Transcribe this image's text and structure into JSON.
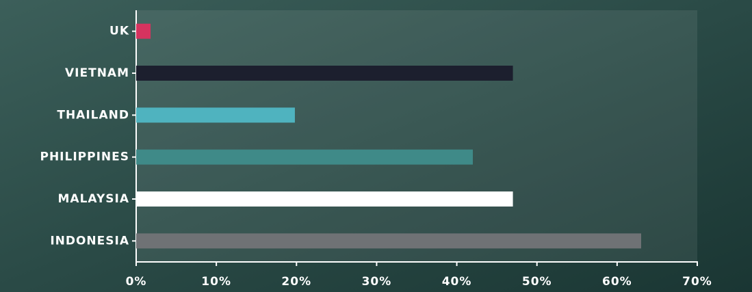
{
  "chart_data": {
    "type": "hbar",
    "categories": [
      "UK",
      "VIETNAM",
      "THAILAND",
      "PHILIPPINES",
      "MALAYSIA",
      "INDONESIA"
    ],
    "values": [
      1.8,
      47,
      19.8,
      42,
      47,
      63
    ],
    "colors": [
      "#d6335f",
      "#1c1f2e",
      "#4fb3bf",
      "#3f8a88",
      "#ffffff",
      "#6f7275"
    ],
    "xlim": [
      0,
      70
    ],
    "xticks": [
      {
        "value": 0,
        "label": "0%"
      },
      {
        "value": 10,
        "label": "10%"
      },
      {
        "value": 20,
        "label": "20%"
      },
      {
        "value": 30,
        "label": "30%"
      },
      {
        "value": 40,
        "label": "40%"
      },
      {
        "value": 50,
        "label": "50%"
      },
      {
        "value": 60,
        "label": "60%"
      },
      {
        "value": 70,
        "label": "70%"
      }
    ]
  }
}
